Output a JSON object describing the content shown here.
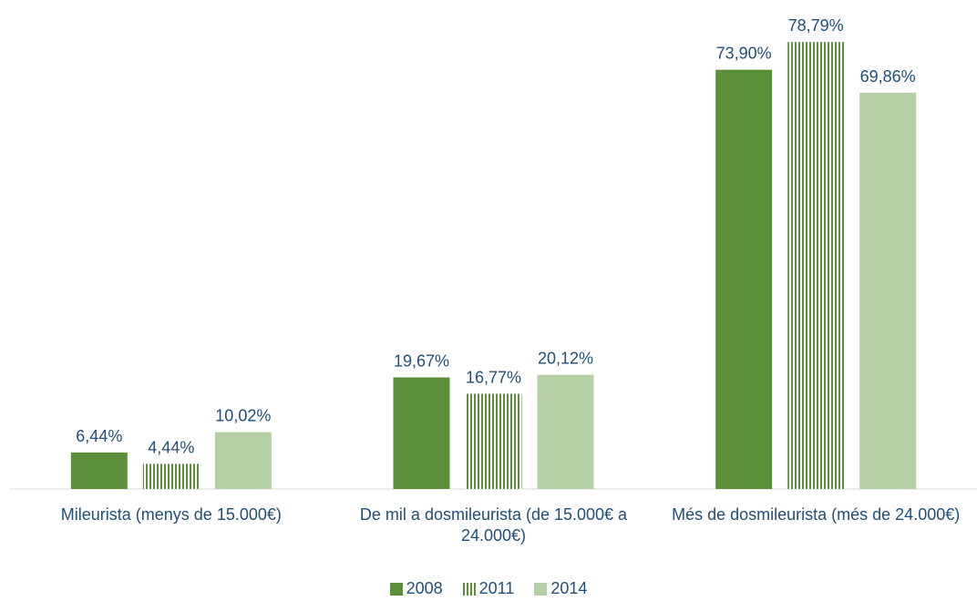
{
  "chart_data": {
    "type": "bar",
    "categories": [
      "Mileurista (menys de 15.000€)",
      "De mil a dosmileurista (de 15.000€ a 24.000€)",
      "Més de dosmileurista (més de 24.000€)"
    ],
    "series": [
      {
        "name": "2008",
        "color": "#5b8f3a",
        "values": [
          6.44,
          19.67,
          73.9
        ],
        "value_labels": [
          "6,44%",
          "19,67%",
          "73,90%"
        ]
      },
      {
        "name": "2011",
        "color": "#5b8f3a",
        "hatch": "vertical",
        "values": [
          4.44,
          16.77,
          78.79
        ],
        "value_labels": [
          "4,44%",
          "16,77%",
          "78,79%"
        ]
      },
      {
        "name": "2014",
        "color": "#b5cfa6",
        "values": [
          10.02,
          20.12,
          69.86
        ],
        "value_labels": [
          "10,02%",
          "20,12%",
          "69,86%"
        ]
      }
    ],
    "legend": "bottom"
  }
}
